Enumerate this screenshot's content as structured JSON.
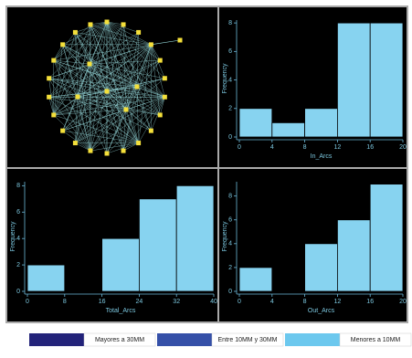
{
  "chart_data": [
    {
      "type": "histogram",
      "xlabel": "In_Arcs",
      "ylabel": "Frequency",
      "bins": [
        0,
        4,
        8,
        12,
        16,
        20
      ],
      "values": [
        2,
        1,
        2,
        8,
        8
      ],
      "color": "#87d3f0",
      "xlim": [
        0,
        20
      ],
      "xticks": [
        0,
        4,
        8,
        12,
        16,
        20
      ],
      "ylim": [
        0,
        8.2
      ],
      "yticks": [
        0,
        2,
        4,
        6,
        8
      ]
    },
    {
      "type": "histogram",
      "xlabel": "Total_Arcs",
      "ylabel": "Frequency",
      "bins": [
        0,
        8,
        16,
        24,
        32,
        40
      ],
      "values": [
        2,
        0,
        4,
        7,
        8
      ],
      "color": "#87d3f0",
      "xlim": [
        0,
        40
      ],
      "xticks": [
        0,
        8,
        16,
        24,
        32,
        40
      ],
      "ylim": [
        0,
        8.3
      ],
      "yticks": [
        0,
        2,
        4,
        6,
        8
      ]
    },
    {
      "type": "histogram",
      "xlabel": "Out_Arcs",
      "ylabel": "Frequency",
      "bins": [
        0,
        4,
        8,
        12,
        16,
        20
      ],
      "values": [
        2,
        0,
        4,
        6,
        9
      ],
      "color": "#87d3f0",
      "xlim": [
        0,
        20
      ],
      "xticks": [
        0,
        4,
        8,
        12,
        16,
        20
      ],
      "ylim": [
        0,
        9.2
      ],
      "yticks": [
        0,
        2,
        4,
        6,
        8
      ]
    }
  ],
  "legend": [
    {
      "label": "Mayores a 30MM",
      "color": "#23237a"
    },
    {
      "label": "Entre 10MM y 30MM",
      "color": "#3550a8"
    },
    {
      "label": "Menores a 10MM",
      "color": "#6cc8ee"
    }
  ]
}
